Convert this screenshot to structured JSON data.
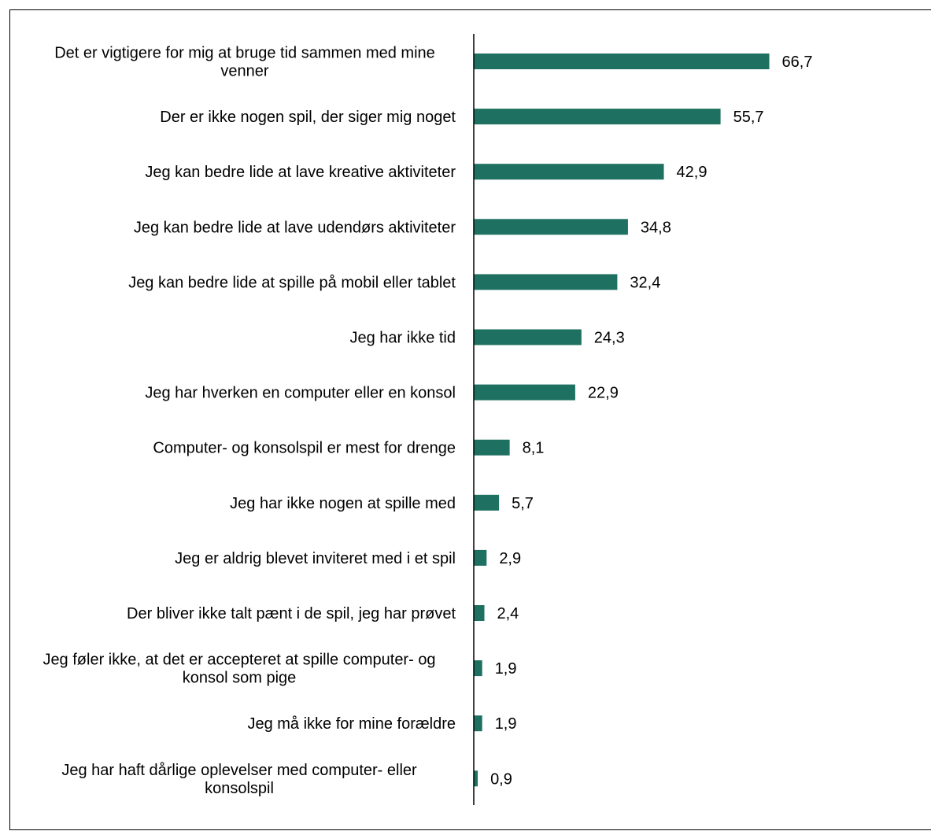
{
  "chart_data": {
    "type": "bar",
    "orientation": "horizontal",
    "categories": [
      "Det er vigtigere for mig at bruge tid sammen med mine venner",
      "Der er ikke nogen spil, der siger mig noget",
      "Jeg kan bedre lide at lave kreative aktiviteter",
      "Jeg kan bedre lide at lave udendørs aktiviteter",
      "Jeg kan bedre lide at spille på mobil eller tablet",
      "Jeg har ikke tid",
      "Jeg har hverken en computer eller en konsol",
      "Computer- og konsolspil er mest for drenge",
      "Jeg har ikke nogen at spille med",
      "Jeg er aldrig blevet inviteret med i et spil",
      "Der bliver ikke talt pænt i de spil, jeg har prøvet",
      "Jeg føler ikke, at det er accepteret at spille computer- og konsol som pige",
      "Jeg må ikke for mine forældre",
      "Jeg har haft dårlige oplevelser med computer- eller konsolspil"
    ],
    "category_lines": [
      [
        "Det er vigtigere for mig at bruge tid sammen med mine",
        "venner"
      ],
      [
        "Der er ikke nogen spil, der siger mig noget"
      ],
      [
        "Jeg kan bedre lide at lave kreative aktiviteter"
      ],
      [
        "Jeg kan bedre lide at lave udendørs aktiviteter"
      ],
      [
        "Jeg kan bedre lide at spille på mobil eller tablet"
      ],
      [
        "Jeg har ikke tid"
      ],
      [
        "Jeg har hverken en computer eller en konsol"
      ],
      [
        "Computer- og konsolspil er mest for drenge"
      ],
      [
        "Jeg har ikke nogen at spille med"
      ],
      [
        "Jeg er aldrig blevet inviteret med i et spil"
      ],
      [
        "Der bliver ikke talt pænt i de spil, jeg har prøvet"
      ],
      [
        "Jeg føler ikke, at det er accepteret at spille computer- og",
        "konsol som pige"
      ],
      [
        "Jeg må ikke for mine forældre"
      ],
      [
        "Jeg har haft dårlige oplevelser med computer- eller",
        "konsolspil"
      ]
    ],
    "values": [
      66.7,
      55.7,
      42.9,
      34.8,
      32.4,
      24.3,
      22.9,
      8.1,
      5.7,
      2.9,
      2.4,
      1.9,
      1.9,
      0.9
    ],
    "value_labels": [
      "66,7",
      "55,7",
      "42,9",
      "34,8",
      "32,4",
      "24,3",
      "22,9",
      "8,1",
      "5,7",
      "2,9",
      "2,4",
      "1,9",
      "1,9",
      "0,9"
    ],
    "title": "",
    "xlabel": "",
    "ylabel": "",
    "xlim": [
      0,
      100
    ],
    "grid": false,
    "legend": "none",
    "bar_color": "#1E7060",
    "axis_color": "#000000"
  }
}
